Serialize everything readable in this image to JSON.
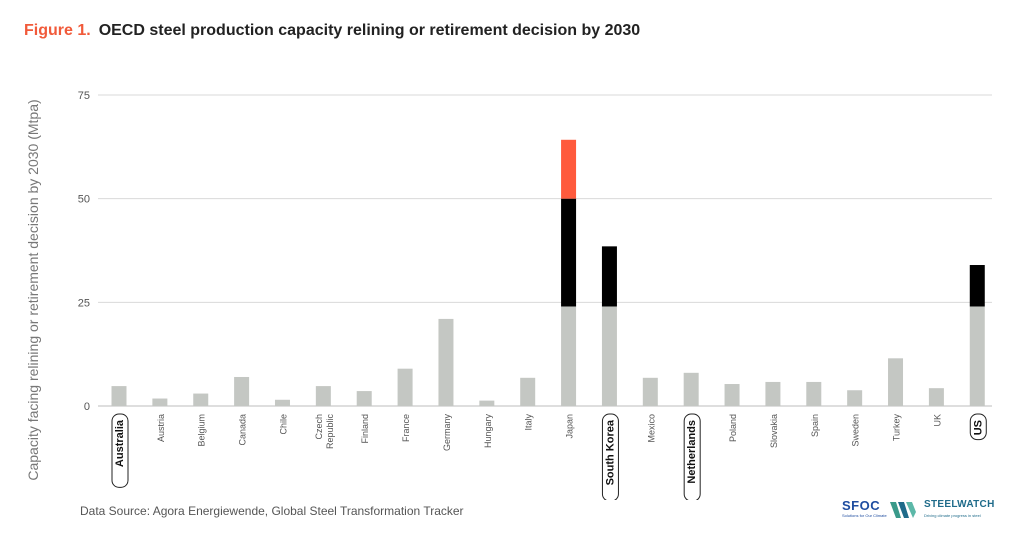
{
  "figure": {
    "label": "Figure 1.",
    "title": "OECD steel production capacity relining or retirement decision by 2030"
  },
  "source": "Data Source: Agora Energiewende, Global Steel Transformation Tracker",
  "logos": {
    "sfoc": "SFOC",
    "sfoc_tagline": "Solutions for Our Climate",
    "steelwatch": "STEELWATCH",
    "steelwatch_tagline": "Driving climate progress in steel"
  },
  "colors": {
    "gray": "#c4c7c3",
    "black": "#000000",
    "red": "#ff5a3c",
    "grid": "#d9d9d9",
    "title_accent": "#f15a3a"
  },
  "chart_data": {
    "type": "bar",
    "stacked": true,
    "ylabel": "Capacity facing relining or retirement decision by 2030 (Mtpa)",
    "ylim": [
      0,
      75
    ],
    "yticks": [
      0,
      25,
      50,
      75
    ],
    "grid": true,
    "categories": [
      "Australia",
      "Austria",
      "Belgium",
      "Canada",
      "Chile",
      "Czech Republic",
      "Finland",
      "France",
      "Germany",
      "Hungary",
      "Italy",
      "Japan",
      "South Korea",
      "Mexico",
      "Netherlands",
      "Poland",
      "Slovakia",
      "Spain",
      "Sweden",
      "Turkey",
      "UK",
      "US"
    ],
    "highlighted": [
      "Australia",
      "South Korea",
      "Netherlands",
      "US"
    ],
    "series": [
      {
        "color": "#c4c7c3",
        "values": [
          4.8,
          1.8,
          3.0,
          7.0,
          1.5,
          4.8,
          3.6,
          9.0,
          21.0,
          1.3,
          6.8,
          24.0,
          24.0,
          6.8,
          8.0,
          5.3,
          5.8,
          5.8,
          3.8,
          11.5,
          4.3,
          24.0
        ]
      },
      {
        "color": "#000000",
        "values": [
          0,
          0,
          0,
          0,
          0,
          0,
          0,
          0,
          0,
          0,
          0,
          26.0,
          14.5,
          0,
          0,
          0,
          0,
          0,
          0,
          0,
          0,
          10.0
        ]
      },
      {
        "color": "#ff5a3c",
        "values": [
          0,
          0,
          0,
          0,
          0,
          0,
          0,
          0,
          0,
          0,
          0,
          14.2,
          0,
          0,
          0,
          0,
          0,
          0,
          0,
          0,
          0,
          0
        ]
      }
    ]
  }
}
